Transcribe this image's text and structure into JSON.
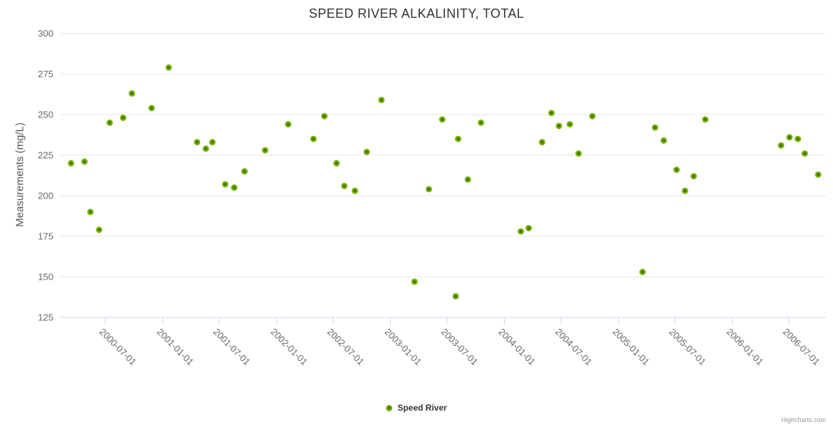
{
  "credits": "Highcharts.com",
  "colors": {
    "marker": "#77b300",
    "marker_center": "#466e00",
    "grid": "#e6e6e6",
    "axis_line": "#ccd6eb",
    "tick_label": "#666666",
    "title": "#333333"
  },
  "chart_data": {
    "type": "scatter",
    "title": "SPEED RIVER ALKALINITY, TOTAL",
    "xlabel": "",
    "ylabel": "Measurements (mg/L)",
    "ylim": [
      125,
      300
    ],
    "y_ticks": [
      125,
      150,
      175,
      200,
      225,
      250,
      275,
      300
    ],
    "x_ticks": [
      "2000-07-01",
      "2001-01-01",
      "2001-07-01",
      "2002-01-01",
      "2002-07-01",
      "2003-01-01",
      "2003-07-01",
      "2004-01-01",
      "2004-07-01",
      "2005-01-01",
      "2005-07-01",
      "2006-01-01",
      "2006-07-01"
    ],
    "grid": true,
    "legend_position": "bottom-center",
    "series": [
      {
        "name": "Speed River",
        "color": "#77b300",
        "points": [
          [
            "2000-03-13",
            220
          ],
          [
            "2000-04-25",
            221
          ],
          [
            "2000-05-14",
            190
          ],
          [
            "2000-06-11",
            179
          ],
          [
            "2000-07-15",
            245
          ],
          [
            "2000-08-27",
            248
          ],
          [
            "2000-09-24",
            263
          ],
          [
            "2000-11-26",
            254
          ],
          [
            "2001-01-20",
            279
          ],
          [
            "2001-04-21",
            233
          ],
          [
            "2001-05-19",
            229
          ],
          [
            "2001-06-09",
            233
          ],
          [
            "2001-07-20",
            207
          ],
          [
            "2001-08-18",
            205
          ],
          [
            "2001-09-20",
            215
          ],
          [
            "2001-11-25",
            228
          ],
          [
            "2002-02-07",
            244
          ],
          [
            "2002-04-29",
            235
          ],
          [
            "2002-06-03",
            249
          ],
          [
            "2002-07-12",
            220
          ],
          [
            "2002-08-06",
            206
          ],
          [
            "2002-09-09",
            203
          ],
          [
            "2002-10-17",
            227
          ],
          [
            "2002-12-03",
            259
          ],
          [
            "2003-03-19",
            147
          ],
          [
            "2003-05-04",
            204
          ],
          [
            "2003-06-16",
            247
          ],
          [
            "2003-07-29",
            138
          ],
          [
            "2003-08-06",
            235
          ],
          [
            "2003-09-06",
            210
          ],
          [
            "2003-10-18",
            245
          ],
          [
            "2004-02-23",
            178
          ],
          [
            "2004-03-19",
            180
          ],
          [
            "2004-05-01",
            233
          ],
          [
            "2004-05-31",
            251
          ],
          [
            "2004-06-24",
            243
          ],
          [
            "2004-07-29",
            244
          ],
          [
            "2004-08-26",
            226
          ],
          [
            "2004-10-09",
            249
          ],
          [
            "2005-03-19",
            153
          ],
          [
            "2005-04-28",
            242
          ],
          [
            "2005-05-26",
            234
          ],
          [
            "2005-07-06",
            216
          ],
          [
            "2005-08-02",
            203
          ],
          [
            "2005-08-30",
            212
          ],
          [
            "2005-10-06",
            247
          ],
          [
            "2006-06-06",
            231
          ],
          [
            "2006-07-03",
            236
          ],
          [
            "2006-07-30",
            235
          ],
          [
            "2006-08-21",
            226
          ],
          [
            "2006-10-03",
            213
          ]
        ]
      }
    ]
  }
}
